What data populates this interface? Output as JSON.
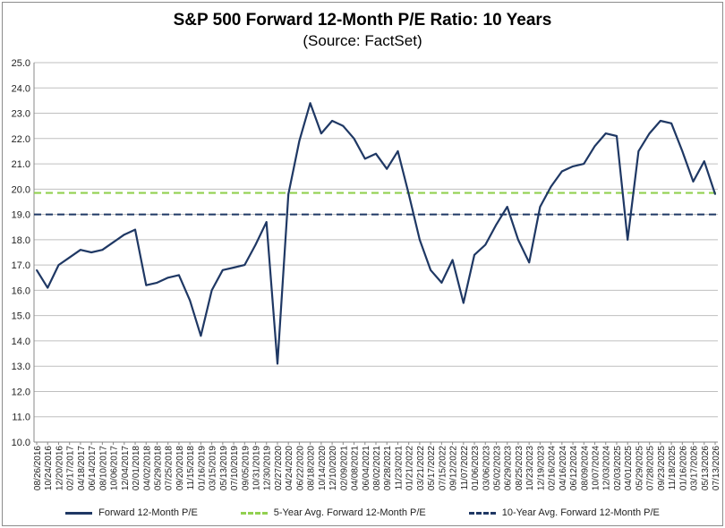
{
  "title": "S&P 500 Forward 12-Month P/E Ratio: 10 Years",
  "subtitle": "(Source: FactSet)",
  "colors": {
    "pe_line": "#1f3864",
    "avg5": "#92d050",
    "avg10": "#1f3864",
    "grid": "#bfbfbf"
  },
  "legend": {
    "pe": "Forward 12-Month P/E",
    "avg5": "5-Year Avg. Forward 12-Month P/E",
    "avg10": "10-Year Avg. Forward 12-Month P/E"
  },
  "chart_data": {
    "type": "line",
    "title": "S&P 500 Forward 12-Month P/E Ratio: 10 Years",
    "subtitle": "(Source: FactSet)",
    "ylim": [
      10.0,
      25.0
    ],
    "y_ticks": [
      "10.0",
      "11.0",
      "12.0",
      "13.0",
      "14.0",
      "15.0",
      "16.0",
      "17.0",
      "18.0",
      "19.0",
      "20.0",
      "21.0",
      "22.0",
      "23.0",
      "24.0",
      "25.0"
    ],
    "x_tick_labels": [
      "08/26/2016",
      "10/24/2016",
      "12/20/2016",
      "02/17/2017",
      "04/18/2017",
      "06/14/2017",
      "08/10/2017",
      "10/06/2017",
      "12/04/2017",
      "02/01/2018",
      "04/02/2018",
      "05/29/2018",
      "07/25/2018",
      "09/20/2018",
      "11/15/2018",
      "01/16/2019",
      "03/15/2019",
      "05/13/2019",
      "07/10/2019",
      "09/05/2019",
      "10/31/2019",
      "12/30/2019",
      "02/27/2020",
      "04/24/2020",
      "06/22/2020",
      "08/18/2020",
      "10/14/2020",
      "12/10/2020",
      "02/09/2021",
      "04/08/2021",
      "06/04/2021",
      "08/02/2021",
      "09/28/2021",
      "11/23/2021",
      "01/21/2022",
      "03/21/2022",
      "05/17/2022",
      "07/15/2022",
      "09/12/2022",
      "11/07/2022",
      "01/06/2023",
      "03/06/2023",
      "05/02/2023",
      "06/29/2023",
      "08/25/2023",
      "10/23/2023",
      "12/19/2023",
      "02/16/2024",
      "04/16/2024",
      "06/12/2024",
      "08/09/2024",
      "10/07/2024",
      "12/03/2024",
      "02/03/2025",
      "04/01/2025",
      "05/29/2025",
      "07/28/2025",
      "09/23/2025",
      "11/18/2025",
      "01/16/2026",
      "03/17/2026",
      "05/13/2026",
      "07/13/2026"
    ],
    "grid": true,
    "legend_position": "bottom",
    "series": [
      {
        "name": "Forward 12-Month P/E",
        "style": "solid",
        "x": [
          "08/26/2016",
          "10/24/2016",
          "12/20/2016",
          "02/17/2017",
          "04/18/2017",
          "06/14/2017",
          "08/10/2017",
          "10/06/2017",
          "12/04/2017",
          "02/01/2018",
          "04/02/2018",
          "05/29/2018",
          "07/25/2018",
          "09/20/2018",
          "11/15/2018",
          "01/16/2019",
          "03/15/2019",
          "05/13/2019",
          "07/10/2019",
          "09/05/2019",
          "10/31/2019",
          "12/30/2019",
          "02/27/2020",
          "04/24/2020",
          "06/22/2020",
          "08/18/2020",
          "10/14/2020",
          "12/10/2020",
          "02/09/2021",
          "04/08/2021",
          "06/04/2021",
          "08/02/2021",
          "09/28/2021",
          "11/23/2021",
          "01/21/2022",
          "03/21/2022",
          "05/17/2022",
          "07/15/2022",
          "09/12/2022",
          "11/07/2022",
          "01/06/2023",
          "03/06/2023",
          "05/02/2023",
          "06/29/2023",
          "08/25/2023",
          "10/23/2023",
          "12/19/2023",
          "02/16/2024",
          "04/16/2024",
          "06/12/2024",
          "08/09/2024",
          "10/07/2024",
          "12/03/2024",
          "02/03/2025",
          "04/01/2025",
          "05/29/2025",
          "07/28/2025",
          "09/23/2025",
          "11/18/2025",
          "01/16/2026",
          "03/17/2026",
          "05/13/2026",
          "07/13/2026"
        ],
        "values": [
          16.8,
          16.1,
          17.0,
          17.3,
          17.6,
          17.5,
          17.6,
          17.9,
          18.2,
          18.4,
          16.2,
          16.3,
          16.5,
          16.6,
          15.6,
          14.2,
          16.0,
          16.8,
          16.9,
          17.0,
          17.8,
          18.7,
          13.1,
          19.8,
          21.9,
          23.4,
          22.2,
          22.7,
          22.5,
          22.0,
          21.2,
          21.4,
          20.8,
          21.5,
          19.8,
          18.0,
          16.8,
          16.3,
          17.2,
          15.5,
          17.4,
          17.8,
          18.6,
          19.3,
          18.0,
          17.1,
          19.3,
          20.1,
          20.7,
          20.9,
          21.0,
          21.7,
          22.2,
          22.1,
          18.0,
          21.5,
          22.2,
          22.7,
          22.6,
          21.5,
          20.3,
          21.1,
          19.8
        ]
      },
      {
        "name": "5-Year Avg. Forward 12-Month P/E",
        "style": "dashed",
        "value": 19.85
      },
      {
        "name": "10-Year Avg. Forward 12-Month P/E",
        "style": "dashed",
        "value": 19.0
      }
    ]
  }
}
